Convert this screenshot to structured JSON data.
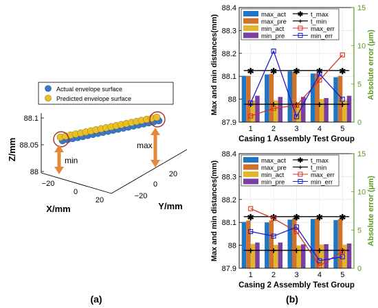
{
  "panel_a": {
    "caption": "(a)",
    "legend": [
      "Actual envelope surface",
      "Predicted envelope surface"
    ],
    "axis_z_label": "Z/mm",
    "axis_x_label": "X/mm",
    "axis_y_label": "Y/mm",
    "z_ticks": [
      "88.1",
      "88.05",
      "88"
    ],
    "x_ticks": [
      "−20",
      "0",
      "20"
    ],
    "y_ticks": [
      "20",
      "0",
      "−20"
    ],
    "annot_min": "min",
    "annot_max": "max"
  },
  "panel_b": {
    "caption": "(b)"
  },
  "colors": {
    "max_act": "#1f77c4",
    "max_pre": "#d0722a",
    "min_act": "#e3b52b",
    "min_pre": "#7b3ea1",
    "t_line": "#000000",
    "max_err": "#d4311f",
    "min_err": "#1a1ad6",
    "right_axis": "#5b9a1e",
    "actual_dot": "#3c78c8",
    "pred_dot": "#e9c127",
    "annot_arrow": "#e28a3a"
  },
  "chart_data": [
    {
      "type": "bar",
      "title": "",
      "xlabel": "Casing 1 Assembly Test Group",
      "ylabel": "Max and min distances(mm)",
      "ylabel_right": "Absolute error (μm)",
      "categories": [
        "1",
        "2",
        "3",
        "4",
        "5"
      ],
      "ylim": [
        87.9,
        88.4
      ],
      "y_ticks": [
        "88.4",
        "88.3",
        "88.2",
        "88.1",
        "88",
        "87.9"
      ],
      "ylim_right": [
        0,
        15
      ],
      "y_ticks_right": [
        "15",
        "10",
        "5",
        "0"
      ],
      "grid": true,
      "legend": [
        "max_act",
        "t_max",
        "max_pre",
        "t_min",
        "min_act",
        "max_err",
        "min_pre",
        "min_err"
      ],
      "series": [
        {
          "name": "max_act",
          "values": [
            88.102,
            88.108,
            88.122,
            88.112,
            88.096
          ]
        },
        {
          "name": "max_pre",
          "values": [
            88.102,
            88.11,
            88.12,
            88.112,
            88.102
          ]
        },
        {
          "name": "min_act",
          "values": [
            87.995,
            87.995,
            87.985,
            88.0,
            87.995
          ]
        },
        {
          "name": "min_pre",
          "values": [
            88.015,
            88.01,
            88.01,
            88.005,
            88.015
          ]
        }
      ],
      "t_max": 88.125,
      "t_min": 87.978,
      "error_series": [
        {
          "name": "max_err",
          "values": [
            0.8,
            1.8,
            2.2,
            5.5,
            8.8
          ]
        },
        {
          "name": "min_err",
          "values": [
            2.5,
            9.3,
            0.7,
            6.3,
            3.0
          ]
        }
      ]
    },
    {
      "type": "bar",
      "title": "",
      "xlabel": "Casing 2 Assembly Test Group",
      "ylabel": "Max and min distances(mm)",
      "ylabel_right": "Absolute error (μm)",
      "categories": [
        "1",
        "2",
        "3",
        "4",
        "5"
      ],
      "ylim": [
        87.9,
        88.4
      ],
      "y_ticks": [
        "88.4",
        "88.3",
        "88.2",
        "88.1",
        "88",
        "87.9"
      ],
      "ylim_right": [
        0,
        15
      ],
      "y_ticks_right": [
        "15",
        "10",
        "5",
        "0"
      ],
      "grid": true,
      "legend": [
        "max_act",
        "t_max",
        "max_pre",
        "t_min",
        "min_act",
        "max_err",
        "min_pre",
        "min_err"
      ],
      "series": [
        {
          "name": "max_act",
          "values": [
            88.102,
            88.1,
            88.112,
            88.115,
            88.11
          ]
        },
        {
          "name": "max_pre",
          "values": [
            88.108,
            88.108,
            88.118,
            88.117,
            88.115
          ]
        },
        {
          "name": "min_act",
          "values": [
            88.006,
            88.002,
            87.999,
            88.003,
            88.003
          ]
        },
        {
          "name": "min_pre",
          "values": [
            88.012,
            88.012,
            88.004,
            88.005,
            88.008
          ]
        }
      ],
      "t_max": 88.125,
      "t_min": 87.978,
      "error_series": [
        {
          "name": "max_err",
          "values": [
            7.8,
            6.5,
            4.8,
            0.3,
            2.2
          ]
        },
        {
          "name": "min_err",
          "values": [
            4.8,
            4.2,
            5.4,
            1.0,
            1.5
          ]
        }
      ]
    }
  ]
}
